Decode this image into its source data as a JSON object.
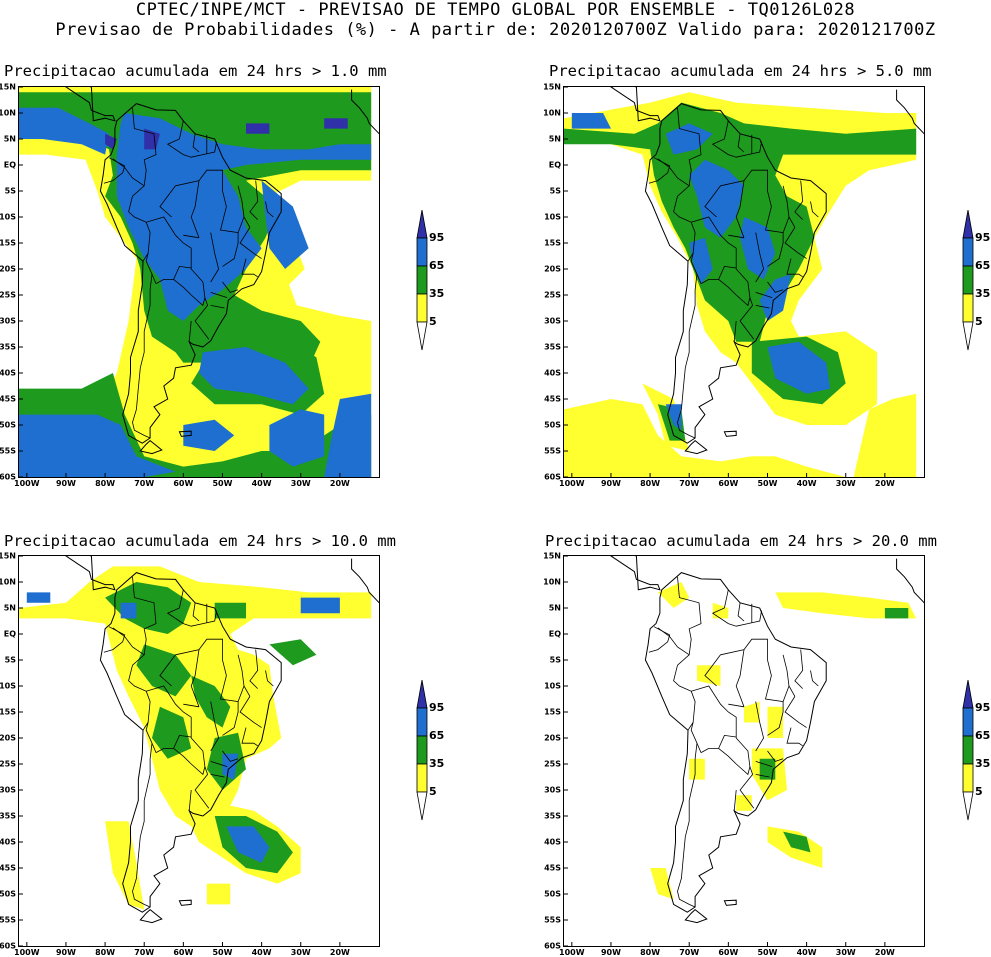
{
  "header": {
    "line1": "CPTEC/INPE/MCT - PREVISAO DE TEMPO GLOBAL POR ENSEMBLE - TQ0126L028",
    "line2": "Previsao de Probabilidades (%) -  A partir de: 2020120700Z  Valido para: 2020121700Z"
  },
  "lat_ticks": [
    "15N",
    "10N",
    "5N",
    "EQ",
    "5S",
    "10S",
    "15S",
    "20S",
    "25S",
    "30S",
    "35S",
    "40S",
    "45S",
    "50S",
    "55S",
    "60S"
  ],
  "lon_ticks": [
    "100W",
    "90W",
    "80W",
    "70W",
    "60W",
    "50W",
    "40W",
    "30W",
    "20W"
  ],
  "colorbar": {
    "labels": [
      "95",
      "65",
      "35",
      "5"
    ],
    "colors": {
      "yellow": "#ffff30",
      "green": "#1e9a1e",
      "blue": "#1f6fd0",
      "purple": "#3030a8"
    }
  },
  "panels": [
    {
      "title": "Precipitacao acumulada em 24 hrs > 1.0 mm"
    },
    {
      "title": "Precipitacao acumulada em 24 hrs > 5.0 mm"
    },
    {
      "title": "Precipitacao acumulada em 24 hrs > 10.0 mm"
    },
    {
      "title": "Precipitacao acumulada em 24 hrs > 20.0 mm"
    }
  ]
}
